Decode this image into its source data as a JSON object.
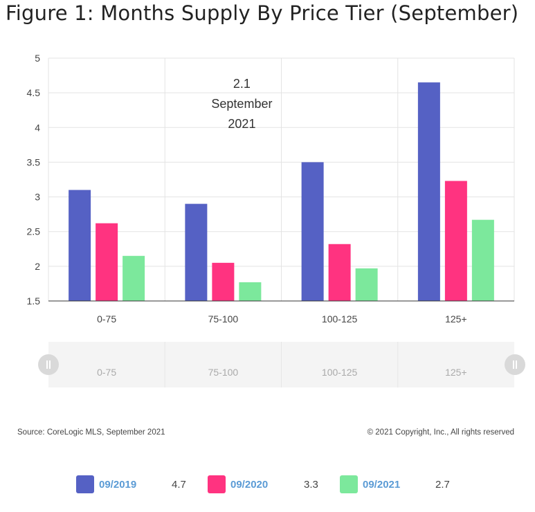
{
  "title": "Figure 1: Months Supply By Price Tier (September)",
  "annotation": [
    "2.1",
    "September",
    "2021"
  ],
  "source": "Source: CoreLogic MLS, September 2021",
  "copyright": "© 2021 Copyright, Inc., All rights reserved",
  "navigator_labels": [
    "0-75",
    "75-100",
    "100-125",
    "125+"
  ],
  "legend": [
    {
      "label": "09/2019",
      "value": "4.7",
      "color": "#5561c4"
    },
    {
      "label": "09/2020",
      "value": "3.3",
      "color": "#ff3380"
    },
    {
      "label": "09/2021",
      "value": "2.7",
      "color": "#7ce89c"
    }
  ],
  "chart_data": {
    "type": "bar",
    "categories": [
      "0-75",
      "75-100",
      "100-125",
      "125+"
    ],
    "series": [
      {
        "name": "09/2019",
        "color": "#5561c4",
        "values": [
          3.1,
          2.9,
          3.5,
          4.65
        ]
      },
      {
        "name": "09/2020",
        "color": "#ff3380",
        "values": [
          2.62,
          2.05,
          2.32,
          3.23
        ]
      },
      {
        "name": "09/2021",
        "color": "#7ce89c",
        "values": [
          2.15,
          1.77,
          1.97,
          2.67
        ]
      }
    ],
    "ylim": [
      1.5,
      5
    ],
    "yticks": [
      "1.5",
      "2",
      "2.5",
      "3",
      "3.5",
      "4",
      "4.5",
      "5"
    ],
    "grid": true,
    "legend_position": "bottom"
  }
}
